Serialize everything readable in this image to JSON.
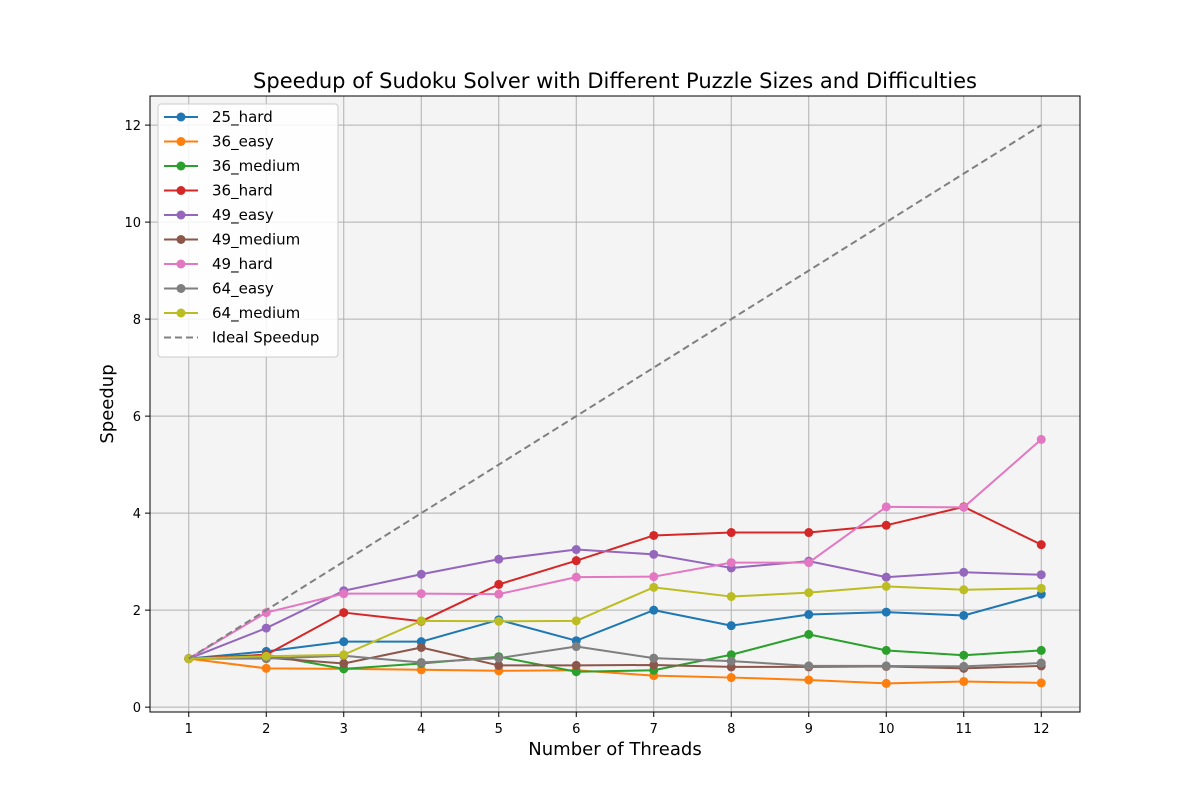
{
  "chart_data": {
    "type": "line",
    "title": "Speedup of Sudoku Solver with Different Puzzle Sizes and Difficulties",
    "xlabel": "Number of Threads",
    "ylabel": "Speedup",
    "x": [
      1,
      2,
      3,
      4,
      5,
      6,
      7,
      8,
      9,
      10,
      11,
      12
    ],
    "xlim": [
      0.5,
      12.5
    ],
    "ylim": [
      -0.1,
      12.6
    ],
    "xticks": [
      1,
      2,
      3,
      4,
      5,
      6,
      7,
      8,
      9,
      10,
      11,
      12
    ],
    "yticks": [
      0,
      2,
      4,
      6,
      8,
      10,
      12
    ],
    "grid": true,
    "legend_position": "top-left",
    "plot_background": "#f4f4f4",
    "series": [
      {
        "name": "25_hard",
        "color": "#1f77b4",
        "marker": "circle",
        "style": "solid",
        "values": [
          1.0,
          1.15,
          1.35,
          1.35,
          1.8,
          1.37,
          2.0,
          1.68,
          1.91,
          1.96,
          1.89,
          2.33
        ]
      },
      {
        "name": "36_easy",
        "color": "#ff7f0e",
        "marker": "circle",
        "style": "solid",
        "values": [
          1.0,
          0.8,
          0.79,
          0.77,
          0.75,
          0.76,
          0.65,
          0.61,
          0.56,
          0.49,
          0.53,
          0.5
        ]
      },
      {
        "name": "36_medium",
        "color": "#2ca02c",
        "marker": "circle",
        "style": "solid",
        "values": [
          1.0,
          1.08,
          0.79,
          0.9,
          1.04,
          0.73,
          0.76,
          1.08,
          1.5,
          1.17,
          1.07,
          1.17
        ]
      },
      {
        "name": "36_hard",
        "color": "#d62728",
        "marker": "circle",
        "style": "solid",
        "values": [
          1.0,
          1.08,
          1.95,
          1.77,
          2.53,
          3.02,
          3.54,
          3.6,
          3.6,
          3.75,
          4.13,
          3.35
        ]
      },
      {
        "name": "49_easy",
        "color": "#9467bd",
        "marker": "circle",
        "style": "solid",
        "values": [
          1.0,
          1.63,
          2.4,
          2.74,
          3.05,
          3.25,
          3.15,
          2.87,
          3.01,
          2.68,
          2.78,
          2.73
        ]
      },
      {
        "name": "49_medium",
        "color": "#8c564b",
        "marker": "circle",
        "style": "solid",
        "values": [
          1.0,
          1.02,
          0.9,
          1.23,
          0.86,
          0.86,
          0.87,
          0.83,
          0.83,
          0.84,
          0.8,
          0.85
        ]
      },
      {
        "name": "49_hard",
        "color": "#e377c2",
        "marker": "circle",
        "style": "solid",
        "values": [
          1.0,
          1.95,
          2.34,
          2.34,
          2.33,
          2.68,
          2.69,
          2.98,
          2.98,
          4.13,
          4.12,
          5.52
        ]
      },
      {
        "name": "64_easy",
        "color": "#7f7f7f",
        "marker": "circle",
        "style": "solid",
        "values": [
          1.0,
          1.0,
          1.06,
          0.92,
          1.01,
          1.25,
          1.01,
          0.95,
          0.85,
          0.85,
          0.84,
          0.91
        ]
      },
      {
        "name": "64_medium",
        "color": "#bcbd22",
        "marker": "circle",
        "style": "solid",
        "values": [
          1.0,
          1.05,
          1.08,
          1.78,
          1.77,
          1.78,
          2.47,
          2.28,
          2.36,
          2.49,
          2.42,
          2.45
        ]
      },
      {
        "name": "Ideal Speedup",
        "color": "#808080",
        "marker": "none",
        "style": "dashed",
        "values": [
          1,
          2,
          3,
          4,
          5,
          6,
          7,
          8,
          9,
          10,
          11,
          12
        ]
      }
    ]
  }
}
